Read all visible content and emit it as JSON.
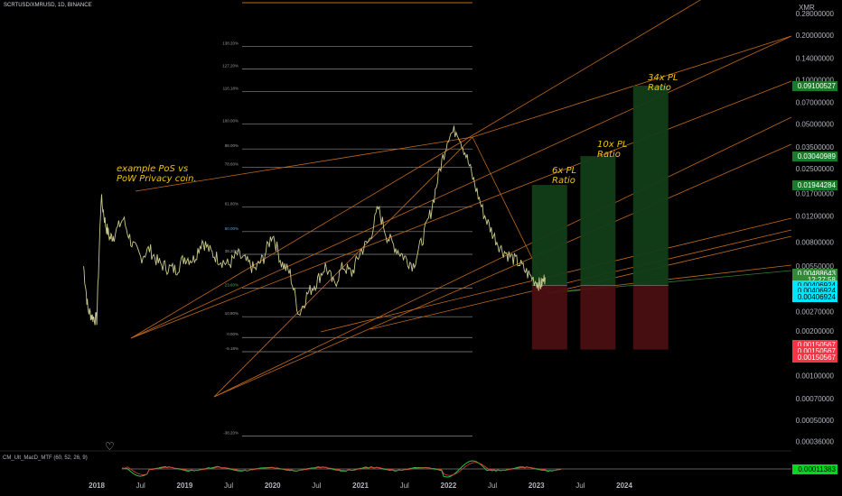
{
  "header": {
    "symbol": "SCRTUSD/XMRUSD, 1D, BINANCE"
  },
  "indicator": {
    "label": "CM_Ult_MacD_MTF (60, 52, 26, 9)",
    "value": "0.00011383"
  },
  "annotations": {
    "pos_vs_pow": "example PoS vs\nPoW Privacy coin.",
    "ratio_6x": "6x PL\nRatio",
    "ratio_10x": "10x PL\nRatio",
    "ratio_34x": "34x PL\nRatio"
  },
  "colors": {
    "bull": "#26a69a",
    "bear": "#ef5350",
    "accent": "#f0c30f",
    "trend": "#c06a1c",
    "profit": "#123d17",
    "loss": "#4a0f12"
  },
  "chart_data": {
    "type": "line",
    "title": "SCRTUSD/XMRUSD, 1D, BINANCE",
    "y_unit": "XMR",
    "y_scale": "log",
    "y_ticks": [
      "0.28000000",
      "0.20000000",
      "0.14000000",
      "0.10000000",
      "0.07000000",
      "0.05000000",
      "0.03500000",
      "0.02500000",
      "0.01700000",
      "0.01200000",
      "0.00800000",
      "0.00550000",
      "0.00380000",
      "0.00270000",
      "0.00200000",
      "0.00140000",
      "0.00100000",
      "0.00070000",
      "0.00050000",
      "0.00036000"
    ],
    "y_tick_values": [
      0.28,
      0.2,
      0.14,
      0.1,
      0.07,
      0.05,
      0.035,
      0.025,
      0.017,
      0.012,
      0.008,
      0.0055,
      0.0038,
      0.0027,
      0.002,
      0.0014,
      0.001,
      0.0007,
      0.0005,
      0.00036
    ],
    "x_ticks": [
      "2018",
      "Jul",
      "2019",
      "Jul",
      "2020",
      "Jul",
      "2021",
      "Jul",
      "2022",
      "Jul",
      "2023",
      "Jul",
      "2024"
    ],
    "x_tick_values": [
      2018.0,
      2018.5,
      2019.0,
      2019.5,
      2020.0,
      2020.5,
      2021.0,
      2021.5,
      2022.0,
      2022.5,
      2023.0,
      2023.5,
      2024.0
    ],
    "x_range": [
      2016.9,
      2025.9
    ],
    "price_tags": [
      {
        "value": "0.09100527",
        "num": 0.091,
        "bg": "#1b7a2a",
        "fg": "#ffffff"
      },
      {
        "value": "0.03040989",
        "num": 0.0304,
        "bg": "#1b7a2a",
        "fg": "#ffffff"
      },
      {
        "value": "0.01944284",
        "num": 0.01944,
        "bg": "#1b7a2a",
        "fg": "#ffffff"
      },
      {
        "value": "0.00488643",
        "num": 0.00488,
        "bg": "#2f8a3a",
        "fg": "#ffffff"
      },
      {
        "value": "12:27:58",
        "num": 0.00443,
        "bg": "#2f8a3a",
        "fg": "#ffffff"
      },
      {
        "value": "0.00406924",
        "num": 0.00407,
        "bg": "#00e5ff",
        "fg": "#000000"
      },
      {
        "value": "0.00406924",
        "num": 0.00372,
        "bg": "#00e5ff",
        "fg": "#000000"
      },
      {
        "value": "0.00406924",
        "num": 0.0034,
        "bg": "#00e5ff",
        "fg": "#000000"
      },
      {
        "value": "0.00150567",
        "num": 0.00161,
        "bg": "#f23645",
        "fg": "#ffffff"
      },
      {
        "value": "0.00150567",
        "num": 0.00146,
        "bg": "#f23645",
        "fg": "#ffffff"
      },
      {
        "value": "0.00150567",
        "num": 0.00133,
        "bg": "#f23645",
        "fg": "#ffffff"
      }
    ],
    "fib_levels": [
      {
        "label": "138.20%",
        "value": 0.168
      },
      {
        "label": "127.20%",
        "value": 0.118
      },
      {
        "label": "116.18%",
        "value": 0.083
      },
      {
        "label": "100.00%",
        "value": 0.05
      },
      {
        "label": "88.00%",
        "value": 0.034
      },
      {
        "label": "78.60%",
        "value": 0.0255
      },
      {
        "label": "61.80%",
        "value": 0.0138
      },
      {
        "label": "50.00%",
        "value": 0.0094
      },
      {
        "label": "38.20%",
        "value": 0.0066
      },
      {
        "label": "23.60%",
        "value": 0.0039
      },
      {
        "label": "10.80%",
        "value": 0.0025
      },
      {
        "label": "0.00%",
        "value": 0.00181
      },
      {
        "label": "-6.18%",
        "value": 0.00145
      },
      {
        "label": "-38.20%",
        "value": 0.00039
      }
    ],
    "series": [
      {
        "x": [
          2017.85,
          2017.9,
          2017.95,
          2018.0,
          2018.05,
          2018.1,
          2018.15,
          2018.2,
          2018.3,
          2018.4,
          2018.5,
          2018.6,
          2018.7,
          2018.8,
          2018.9,
          2019.0,
          2019.1,
          2019.2,
          2019.3,
          2019.4,
          2019.5,
          2019.6,
          2019.7,
          2019.8,
          2019.9,
          2020.0,
          2020.1,
          2020.2,
          2020.3,
          2020.4,
          2020.5,
          2020.6,
          2020.7,
          2020.8,
          2020.9,
          2021.0,
          2021.1,
          2021.2,
          2021.3,
          2021.4,
          2021.5,
          2021.6,
          2021.7,
          2021.8,
          2021.9,
          2022.0,
          2022.1,
          2022.2,
          2022.3,
          2022.4,
          2022.5,
          2022.6,
          2022.7,
          2022.8,
          2022.9,
          2023.0,
          2023.05,
          2023.1
        ],
        "y": [
          0.0055,
          0.0028,
          0.0025,
          0.0024,
          0.016,
          0.0105,
          0.0085,
          0.009,
          0.0115,
          0.0078,
          0.0063,
          0.0072,
          0.0058,
          0.0054,
          0.0052,
          0.0063,
          0.0061,
          0.0082,
          0.0068,
          0.0061,
          0.0056,
          0.0066,
          0.0059,
          0.0052,
          0.0063,
          0.0092,
          0.0058,
          0.0049,
          0.0026,
          0.0036,
          0.0043,
          0.0055,
          0.0041,
          0.0055,
          0.0049,
          0.0069,
          0.0082,
          0.0135,
          0.0088,
          0.0073,
          0.0063,
          0.0056,
          0.0082,
          0.0128,
          0.0245,
          0.042,
          0.046,
          0.031,
          0.0195,
          0.0125,
          0.0092,
          0.0072,
          0.0064,
          0.0058,
          0.0049,
          0.0043,
          0.0041,
          0.0046
        ]
      }
    ],
    "position_boxes": [
      {
        "x0": 2022.95,
        "x1": 2023.35,
        "target": 0.01944,
        "entry": 0.00407,
        "stop": 0.0015
      },
      {
        "x0": 2023.5,
        "x1": 2023.9,
        "target": 0.0304,
        "entry": 0.00407,
        "stop": 0.0015
      },
      {
        "x0": 2024.1,
        "x1": 2024.5,
        "target": 0.091,
        "entry": 0.00407,
        "stop": 0.0015
      }
    ]
  }
}
